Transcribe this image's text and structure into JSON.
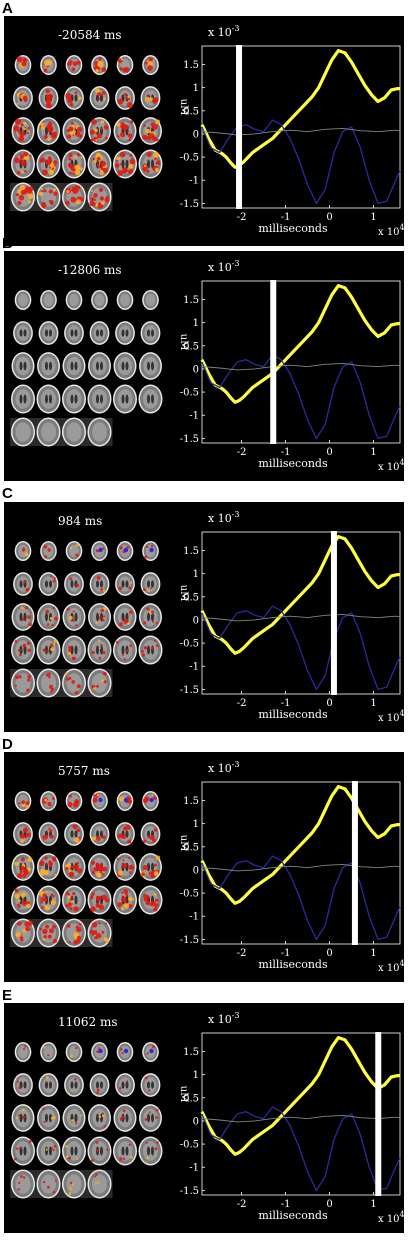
{
  "panels": [
    {
      "letter": "A",
      "time_label": "-20584 ms",
      "cursor_ms": -20584,
      "rows": [
        6,
        6,
        6,
        6,
        4
      ],
      "activation": {
        "type": "widespread",
        "intensity": 0.95
      },
      "y_ticks_shown": [
        "1.5",
        "1",
        "0.5",
        "0",
        "-0.5",
        "-1",
        "-1.5"
      ],
      "x_ticks_shown": [
        "-2",
        "-1",
        "0",
        "1"
      ]
    },
    {
      "letter": "B",
      "time_label": "-12806 ms",
      "cursor_ms": -12806,
      "rows": [
        6,
        6,
        6,
        6,
        4
      ],
      "activation": {
        "type": "none",
        "intensity": 0.0
      },
      "y_ticks_shown": [
        "1.5",
        "1",
        "0.5",
        "0",
        "-0.5",
        "-1",
        "-1.5"
      ],
      "x_ticks_shown": [
        "-2",
        "-1",
        "0",
        "1"
      ]
    },
    {
      "letter": "C",
      "time_label": "984 ms",
      "cursor_ms": 984,
      "rows": [
        6,
        6,
        6,
        6,
        4
      ],
      "activation": {
        "type": "mild",
        "intensity": 0.45
      },
      "y_ticks_shown": [
        "1.5",
        "1",
        "0.5",
        "0",
        "-0.5",
        "-1",
        "-1.5"
      ],
      "x_ticks_shown": [
        "-2",
        "-1",
        "0",
        "1"
      ]
    },
    {
      "letter": "D",
      "time_label": "5757 ms",
      "cursor_ms": 5757,
      "rows": [
        6,
        6,
        6,
        6,
        4
      ],
      "activation": {
        "type": "strong",
        "intensity": 0.8
      },
      "y_ticks_shown": [
        "1.5",
        "1",
        "0.5",
        "0",
        "-0.5",
        "-1",
        "-1.5"
      ],
      "x_ticks_shown": [
        "-2",
        "-1",
        "0",
        "1"
      ]
    },
    {
      "letter": "E",
      "time_label": "11062 ms",
      "cursor_ms": 11062,
      "rows": [
        6,
        6,
        6,
        6,
        4
      ],
      "activation": {
        "type": "faint",
        "intensity": 0.25
      },
      "y_ticks_shown": [
        "1.5",
        "1",
        "0.5",
        "0",
        "-0.5",
        "-1",
        "-1.5"
      ],
      "x_ticks_shown": [
        "-2",
        "-1",
        "0",
        "1"
      ]
    }
  ],
  "plot_text": {
    "y_exponent_base": "x 10",
    "y_exponent": "-3",
    "ylabel": "uM",
    "xlabel": "milliseconds",
    "x_exponent_base": "x 10",
    "x_exponent": "4"
  },
  "chart_data": {
    "type": "line",
    "xlabel": "milliseconds",
    "ylabel": "uM",
    "x_scale_note": "x 10^4",
    "y_scale_note": "x 10^-3",
    "xlim": [
      -29000,
      16000
    ],
    "ylim": [
      -1.6,
      1.9
    ],
    "series": [
      {
        "name": "",
        "color": "#ffff40",
        "x": [
          -29000,
          -27500,
          -26000,
          -24500,
          -23500,
          -22500,
          -21500,
          -20500,
          -19500,
          -18500,
          -17500,
          -16000,
          -14500,
          -13000,
          -11500,
          -10000,
          -8500,
          -7000,
          -5500,
          -4000,
          -2500,
          -1000,
          500,
          2000,
          3500,
          5000,
          6500,
          8000,
          9500,
          11000,
          12500,
          14000,
          15500,
          16000
        ],
        "y": [
          0.2,
          -0.1,
          -0.35,
          -0.42,
          -0.5,
          -0.62,
          -0.72,
          -0.68,
          -0.6,
          -0.5,
          -0.4,
          -0.3,
          -0.2,
          -0.1,
          0.05,
          0.2,
          0.35,
          0.5,
          0.65,
          0.8,
          1.0,
          1.3,
          1.6,
          1.8,
          1.75,
          1.55,
          1.3,
          1.05,
          0.85,
          0.7,
          0.78,
          0.95,
          0.98,
          0.98
        ]
      },
      {
        "name": "",
        "color": "#2a2aa0",
        "x": [
          -29000,
          -27000,
          -25000,
          -23000,
          -21000,
          -19000,
          -17000,
          -15000,
          -13000,
          -11000,
          -9000,
          -7000,
          -5000,
          -3000,
          -1000,
          1000,
          3000,
          5000,
          7000,
          9000,
          11000,
          13000,
          15000,
          16000
        ],
        "y": [
          0.15,
          -0.3,
          -0.4,
          -0.1,
          0.15,
          0.2,
          0.1,
          0.05,
          0.3,
          0.2,
          -0.1,
          -0.55,
          -1.1,
          -1.5,
          -1.2,
          -0.4,
          0.05,
          0.15,
          -0.3,
          -1.0,
          -1.5,
          -1.45,
          -1.0,
          -0.8
        ]
      },
      {
        "name": "",
        "color": "#7a8a7a",
        "x": [
          -29000,
          -25000,
          -21000,
          -17000,
          -13000,
          -9000,
          -5000,
          -1000,
          3000,
          7000,
          11000,
          15000,
          16000
        ],
        "y": [
          0.05,
          0.02,
          -0.02,
          0.0,
          0.05,
          0.08,
          0.05,
          0.1,
          0.12,
          0.07,
          0.05,
          0.08,
          0.07
        ]
      }
    ]
  }
}
